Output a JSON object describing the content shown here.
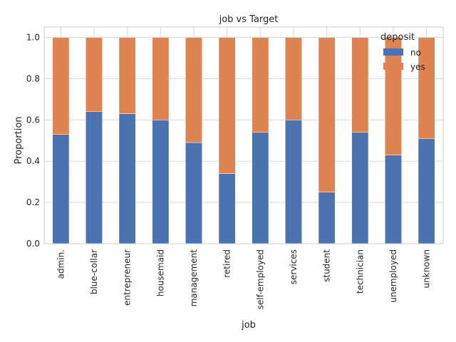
{
  "chart_data": {
    "type": "bar",
    "stacked": true,
    "title": "job vs Target",
    "xlabel": "job",
    "ylabel": "Proportion",
    "ylim": [
      0,
      1.05
    ],
    "yticks": [
      "0.0",
      "0.2",
      "0.4",
      "0.6",
      "0.8",
      "1.0"
    ],
    "categories": [
      "admin.",
      "blue-collar",
      "entrepreneur",
      "housemaid",
      "management",
      "retired",
      "self-employed",
      "services",
      "student",
      "technician",
      "unemployed",
      "unknown"
    ],
    "series": [
      {
        "name": "no",
        "color": "#4c72b0",
        "values": [
          0.53,
          0.64,
          0.63,
          0.6,
          0.49,
          0.34,
          0.54,
          0.6,
          0.25,
          0.54,
          0.43,
          0.51
        ]
      },
      {
        "name": "yes",
        "color": "#dd8452",
        "values": [
          0.47,
          0.36,
          0.37,
          0.4,
          0.51,
          0.66,
          0.46,
          0.4,
          0.75,
          0.46,
          0.57,
          0.49
        ]
      }
    ],
    "grid": true,
    "legend": {
      "title": "deposit",
      "placement": "top-right"
    }
  }
}
